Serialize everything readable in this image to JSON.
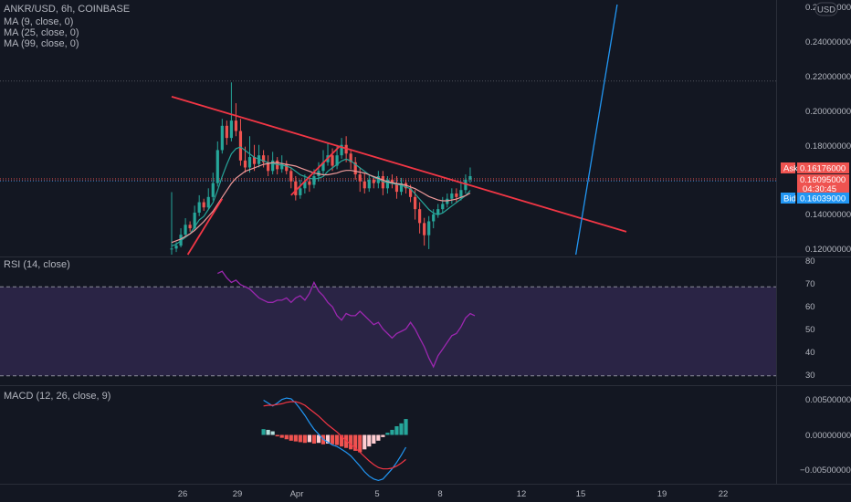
{
  "header": {
    "symbol_line": "ANKR/USD, 6h, COINBASE",
    "indicators": [
      "MA (9, close, 0)",
      "MA (25, close, 0)",
      "MA (99, close, 0)"
    ],
    "currency_badge": "USD"
  },
  "colors": {
    "background": "#131722",
    "up": "#26a69a",
    "down": "#ef5350",
    "trendline": "#f23645",
    "ma_fast": "#26a69a",
    "ma_slow": "#ef9a9a",
    "projection": "#2196f3",
    "rsi": "#9c27b0",
    "macd_line": "#2196f3",
    "signal_line": "#f23645",
    "ask": "#ef5350",
    "bid": "#2196f3"
  },
  "price_axis": {
    "labels": [
      "0.26000000",
      "0.24000000",
      "0.22000000",
      "0.20000000",
      "0.18000000",
      "0.14000000",
      "0.12000000"
    ],
    "tags": {
      "ask_label": "Ask",
      "ask_value": "0.16176000",
      "last_value": "0.16095000",
      "countdown": "04:30:45",
      "bid_label": "Bid",
      "bid_value": "0.16039000"
    }
  },
  "rsi": {
    "label": "RSI (14, close)",
    "axis": [
      "80",
      "70",
      "60",
      "50",
      "40",
      "30"
    ]
  },
  "macd": {
    "label": "MACD (12, 26, close, 9)",
    "axis": [
      "0.00500000",
      "0.00000000",
      "−0.00500000"
    ]
  },
  "time_axis": [
    "26",
    "29",
    "Apr",
    "5",
    "8",
    "12",
    "15",
    "19",
    "22"
  ],
  "chart_data": [
    {
      "type": "candlestick",
      "title": "ANKR/USD, 6h, COINBASE",
      "ylim": [
        0.118,
        0.262
      ],
      "y_ticks": [
        0.26,
        0.24,
        0.22,
        0.2,
        0.18,
        0.14,
        0.12
      ],
      "candles": [
        [
          0.1215,
          0.1215,
          0.154,
          0.118
        ],
        [
          0.1215,
          0.1232,
          0.1252,
          0.1195
        ],
        [
          0.1232,
          0.1295,
          0.1332,
          0.1222
        ],
        [
          0.1295,
          0.1352,
          0.139,
          0.1282
        ],
        [
          0.1352,
          0.1332,
          0.1372,
          0.1312
        ],
        [
          0.1332,
          0.1422,
          0.1462,
          0.1322
        ],
        [
          0.1422,
          0.1482,
          0.1522,
          0.1402
        ],
        [
          0.1482,
          0.1452,
          0.1502,
          0.1432
        ],
        [
          0.1452,
          0.1512,
          0.1562,
          0.1442
        ],
        [
          0.1512,
          0.1592,
          0.1652,
          0.1492
        ],
        [
          0.1592,
          0.1782,
          0.1832,
          0.1572
        ],
        [
          0.1782,
          0.1922,
          0.1962,
          0.1762
        ],
        [
          0.1922,
          0.1852,
          0.1952,
          0.1812
        ],
        [
          0.1852,
          0.1952,
          0.2172,
          0.1832
        ],
        [
          0.1952,
          0.1892,
          0.2052,
          0.1862
        ],
        [
          0.1892,
          0.1722,
          0.1962,
          0.1692
        ],
        [
          0.1722,
          0.1682,
          0.1802,
          0.1652
        ],
        [
          0.1682,
          0.1742,
          0.1862,
          0.1652
        ],
        [
          0.1742,
          0.1702,
          0.1812,
          0.1662
        ],
        [
          0.1702,
          0.1752,
          0.1812,
          0.1682
        ],
        [
          0.1752,
          0.1712,
          0.1782,
          0.1682
        ],
        [
          0.1712,
          0.1662,
          0.1752,
          0.1632
        ],
        [
          0.1662,
          0.1722,
          0.1772,
          0.1642
        ],
        [
          0.1722,
          0.1672,
          0.1742,
          0.1642
        ],
        [
          0.1672,
          0.1702,
          0.1752,
          0.1652
        ],
        [
          0.1702,
          0.1662,
          0.1722,
          0.1642
        ],
        [
          0.1662,
          0.1602,
          0.1682,
          0.1562
        ],
        [
          0.1602,
          0.1522,
          0.1632,
          0.1492
        ],
        [
          0.1522,
          0.1562,
          0.1612,
          0.1502
        ],
        [
          0.1562,
          0.1602,
          0.1642,
          0.1532
        ],
        [
          0.1602,
          0.1582,
          0.1632,
          0.1542
        ],
        [
          0.1582,
          0.1632,
          0.1672,
          0.1562
        ],
        [
          0.1632,
          0.1662,
          0.1712,
          0.1602
        ],
        [
          0.1662,
          0.1712,
          0.1782,
          0.1642
        ],
        [
          0.1712,
          0.1752,
          0.1822,
          0.1692
        ],
        [
          0.1752,
          0.1692,
          0.1792,
          0.1662
        ],
        [
          0.1692,
          0.1752,
          0.1812,
          0.1672
        ],
        [
          0.1752,
          0.1812,
          0.1852,
          0.1732
        ],
        [
          0.1812,
          0.1762,
          0.1862,
          0.1712
        ],
        [
          0.1762,
          0.1712,
          0.1782,
          0.1672
        ],
        [
          0.1712,
          0.1642,
          0.1742,
          0.1612
        ],
        [
          0.1642,
          0.1602,
          0.1682,
          0.1542
        ],
        [
          0.1602,
          0.1562,
          0.1652,
          0.1532
        ],
        [
          0.1562,
          0.1612,
          0.1642,
          0.1542
        ],
        [
          0.1612,
          0.1592,
          0.1632,
          0.1562
        ],
        [
          0.1592,
          0.1632,
          0.1662,
          0.1562
        ],
        [
          0.1632,
          0.1562,
          0.1662,
          0.1522
        ],
        [
          0.1562,
          0.1612,
          0.1632,
          0.1532
        ],
        [
          0.1612,
          0.1592,
          0.1642,
          0.1562
        ],
        [
          0.1592,
          0.1542,
          0.1632,
          0.1502
        ],
        [
          0.1542,
          0.1592,
          0.1622,
          0.1522
        ],
        [
          0.1592,
          0.1562,
          0.1612,
          0.1532
        ],
        [
          0.1562,
          0.1512,
          0.1582,
          0.1482
        ],
        [
          0.1512,
          0.1442,
          0.1552,
          0.1382
        ],
        [
          0.1442,
          0.1362,
          0.1482,
          0.1302
        ],
        [
          0.1362,
          0.1292,
          0.1392,
          0.1232
        ],
        [
          0.1292,
          0.1372,
          0.1402,
          0.1212
        ],
        [
          0.1372,
          0.1412,
          0.1442,
          0.1332
        ],
        [
          0.1412,
          0.1442,
          0.1472,
          0.1392
        ],
        [
          0.1442,
          0.1472,
          0.1512,
          0.1422
        ],
        [
          0.1472,
          0.1502,
          0.1532,
          0.1452
        ],
        [
          0.1502,
          0.1532,
          0.1562,
          0.1472
        ],
        [
          0.1532,
          0.1512,
          0.1562,
          0.1482
        ],
        [
          0.1512,
          0.1552,
          0.1592,
          0.1492
        ],
        [
          0.1552,
          0.1612,
          0.1642,
          0.1532
        ],
        [
          0.1612,
          0.1632,
          0.1682,
          0.1592
        ]
      ],
      "ma9": [
        0.123,
        0.124,
        0.126,
        0.128,
        0.13,
        0.134,
        0.138,
        0.14,
        0.144,
        0.148,
        0.155,
        0.163,
        0.17,
        0.176,
        0.179,
        0.18,
        0.178,
        0.176,
        0.174,
        0.173,
        0.172,
        0.171,
        0.1705,
        0.17,
        0.1695,
        0.169,
        0.168,
        0.166,
        0.164,
        0.163,
        0.162,
        0.1615,
        0.162,
        0.163,
        0.166,
        0.168,
        0.17,
        0.172,
        0.173,
        0.172,
        0.17,
        0.168,
        0.166,
        0.164,
        0.1625,
        0.1615,
        0.16,
        0.1595,
        0.159,
        0.1585,
        0.158,
        0.157,
        0.156,
        0.153,
        0.15,
        0.147,
        0.144,
        0.142,
        0.141,
        0.142,
        0.144,
        0.146,
        0.148,
        0.15,
        0.152,
        0.155
      ],
      "ma25": [
        0.125,
        0.126,
        0.127,
        0.1285,
        0.13,
        0.132,
        0.1345,
        0.137,
        0.14,
        0.143,
        0.147,
        0.151,
        0.155,
        0.159,
        0.162,
        0.164,
        0.166,
        0.167,
        0.168,
        0.169,
        0.17,
        0.1705,
        0.171,
        0.171,
        0.1705,
        0.17,
        0.1695,
        0.169,
        0.168,
        0.167,
        0.166,
        0.165,
        0.1645,
        0.164,
        0.164,
        0.1645,
        0.165,
        0.166,
        0.1665,
        0.1665,
        0.166,
        0.1655,
        0.165,
        0.164,
        0.163,
        0.162,
        0.161,
        0.16,
        0.1595,
        0.159,
        0.1585,
        0.158,
        0.157,
        0.156,
        0.1545,
        0.153,
        0.1515,
        0.1505,
        0.1495,
        0.149,
        0.149,
        0.1495,
        0.15,
        0.151,
        0.152,
        0.1535
      ],
      "trendlines": [
        {
          "name": "resistance",
          "x": [
            0.0,
            65.5
          ],
          "y": [
            0.209,
            0.1558
          ],
          "extend_to": [
            99.0,
            0.1312
          ]
        },
        {
          "name": "support-1",
          "x": [
            3.5,
            11.0
          ],
          "y": [
            0.118,
            0.1502
          ]
        },
        {
          "name": "support-2",
          "x": [
            26.0,
            36.5
          ],
          "y": [
            0.1522,
            0.1802
          ]
        },
        {
          "name": "projection",
          "x": [
            88.0,
            97.0
          ],
          "y": [
            0.118,
            0.262
          ]
        }
      ],
      "price_lines": [
        0.218,
        0.16176,
        0.16095,
        0.16039
      ]
    },
    {
      "type": "line",
      "title": "RSI (14, close)",
      "ylim": [
        27,
        82
      ],
      "bands": [
        70,
        30
      ],
      "x_start_index": 10,
      "values": [
        76,
        77,
        74,
        72,
        73,
        71,
        70,
        69,
        67,
        65,
        64,
        63,
        63,
        64,
        64,
        65,
        63,
        65,
        66,
        64,
        67,
        72,
        68,
        66,
        63,
        61,
        57,
        55,
        58,
        57,
        57,
        59,
        57,
        55,
        53,
        54,
        51,
        49,
        47,
        49,
        50,
        51,
        54,
        51,
        47,
        43,
        38,
        34,
        39,
        42,
        45,
        48,
        49,
        52,
        56,
        58,
        57
      ]
    },
    {
      "type": "bar",
      "title": "MACD (12, 26, close, 9)",
      "ylim": [
        -0.0065,
        0.0065
      ],
      "y_ticks": [
        0.005,
        0.0,
        -0.005
      ],
      "x_start_index": 20,
      "histogram": [
        0.0008,
        0.0007,
        0.0005,
        -0.0002,
        -0.0004,
        -0.0006,
        -0.0008,
        -0.0009,
        -0.001,
        -0.0011,
        -0.001,
        -0.0012,
        -0.0011,
        -0.0013,
        -0.0012,
        -0.0013,
        -0.0014,
        -0.0016,
        -0.0018,
        -0.002,
        -0.0022,
        -0.0024,
        -0.002,
        -0.0016,
        -0.0012,
        -0.0008,
        -0.0003,
        0.0003,
        0.0007,
        0.0012,
        0.0016,
        0.0022
      ],
      "macd": [
        0.0048,
        0.0044,
        0.004,
        0.0044,
        0.0049,
        0.0051,
        0.005,
        0.0044,
        0.0036,
        0.0027,
        0.0017,
        0.0008,
        0.0001,
        -0.0006,
        -0.001,
        -0.0014,
        -0.0016,
        -0.002,
        -0.0024,
        -0.0029,
        -0.0036,
        -0.0043,
        -0.0051,
        -0.0057,
        -0.0061,
        -0.0063,
        -0.0061,
        -0.0054,
        -0.0047,
        -0.0038,
        -0.0028,
        -0.0017
      ],
      "signal": [
        0.004,
        0.0041,
        0.0041,
        0.0042,
        0.0043,
        0.0045,
        0.0046,
        0.0046,
        0.0044,
        0.0041,
        0.0036,
        0.0031,
        0.0026,
        0.002,
        0.0014,
        0.0009,
        0.0004,
        -0.0002,
        -0.0008,
        -0.0013,
        -0.0018,
        -0.0024,
        -0.003,
        -0.0036,
        -0.0041,
        -0.0045,
        -0.0047,
        -0.0047,
        -0.0046,
        -0.0043,
        -0.0039,
        -0.0034
      ]
    }
  ]
}
